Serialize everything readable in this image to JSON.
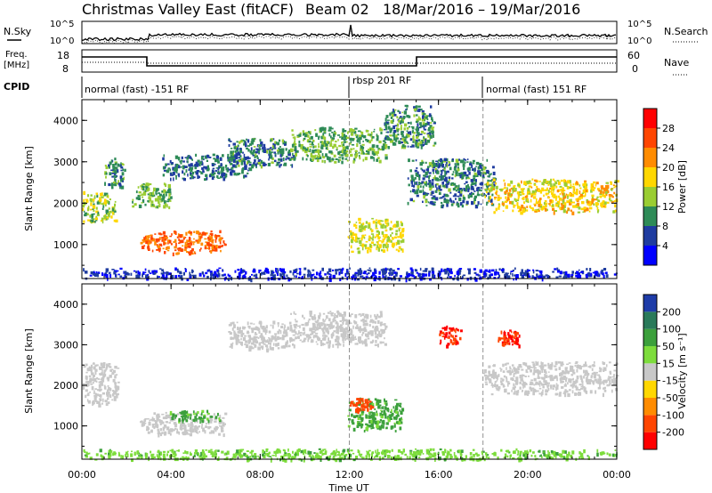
{
  "header": {
    "title": "Christmas Valley East (fitACF)",
    "beam": "Beam 02",
    "date_range": "18/Mar/2016 – 19/Mar/2016"
  },
  "side_labels": {
    "nsky": "N.Sky",
    "nsearch": "N.Search",
    "freq_line1": "Freq.",
    "freq_line2": "[MHz]",
    "nave": "Nave",
    "cpid": "CPID"
  },
  "strip_ticks": {
    "noise_left": [
      "10^5",
      "10^0"
    ],
    "noise_right": [
      "10^5",
      "10^0"
    ],
    "freq_left": [
      "18",
      "8"
    ],
    "freq_right": [
      "60",
      "0"
    ]
  },
  "cpid_segments": [
    {
      "label": "normal (fast) -151 RF",
      "start_h": 0,
      "end_h": 12
    },
    {
      "label": "rbsp 201 RF",
      "start_h": 12,
      "end_h": 18
    },
    {
      "label": "normal (fast) 151 RF",
      "start_h": 18,
      "end_h": 24
    }
  ],
  "axes": {
    "xlabel": "Time UT",
    "ylabel_top": "Slant Range [km]",
    "ylabel_bottom": "Slant Range [km]",
    "xticks": [
      "00:00",
      "04:00",
      "08:00",
      "12:00",
      "16:00",
      "20:00",
      "00:00"
    ],
    "yticks": [
      "1000",
      "2000",
      "3000",
      "4000"
    ]
  },
  "colorbars": {
    "power": {
      "label": "Power [dB]",
      "ticks": [
        "4",
        "8",
        "12",
        "16",
        "20",
        "24",
        "28"
      ],
      "colors": [
        "#0000ff",
        "#1f3ca0",
        "#2e8b57",
        "#9acd32",
        "#ffd700",
        "#ff8c00",
        "#ff4500",
        "#ff0000"
      ]
    },
    "velocity": {
      "label": "Velocity [m s⁻¹]",
      "ticks": [
        "200",
        "100",
        "50",
        "15",
        "-15",
        "-50",
        "-100",
        "-200"
      ],
      "colors": [
        "#1e3ca8",
        "#2a7a5a",
        "#3ca03c",
        "#7ddc3c",
        "#c8c8c8",
        "#ffd700",
        "#ff8c00",
        "#ff4500",
        "#ff0000"
      ]
    }
  },
  "chart_data": {
    "type": "heatmap",
    "x_unit": "hours UT",
    "y_unit": "km",
    "xlim": [
      0,
      24
    ],
    "ylim": [
      180,
      4500
    ],
    "power_echoes": [
      {
        "t": [
          0.0,
          1.5
        ],
        "r": [
          1550,
          2300
        ],
        "power_db": 14
      },
      {
        "t": [
          1.0,
          1.9
        ],
        "r": [
          2350,
          3100
        ],
        "power_db": 10
      },
      {
        "t": [
          2.2,
          4.0
        ],
        "r": [
          1900,
          2500
        ],
        "power_db": 12
      },
      {
        "t": [
          2.6,
          6.4
        ],
        "r": [
          800,
          1350
        ],
        "power_db": 24
      },
      {
        "t": [
          3.6,
          7.5
        ],
        "r": [
          2600,
          3200
        ],
        "power_db": 8
      },
      {
        "t": [
          6.5,
          9.6
        ],
        "r": [
          2900,
          3600
        ],
        "power_db": 9
      },
      {
        "t": [
          9.3,
          13.6
        ],
        "r": [
          3000,
          3850
        ],
        "power_db": 12
      },
      {
        "t": [
          11.9,
          14.4
        ],
        "r": [
          850,
          1650
        ],
        "power_db": 16
      },
      {
        "t": [
          13.5,
          15.8
        ],
        "r": [
          3350,
          4400
        ],
        "power_db": 10
      },
      {
        "t": [
          14.6,
          18.5
        ],
        "r": [
          1950,
          3100
        ],
        "power_db": 9
      },
      {
        "t": [
          18.0,
          24.0
        ],
        "r": [
          1800,
          2600
        ],
        "power_db": 18
      },
      {
        "t": [
          0.0,
          24.0
        ],
        "r": [
          180,
          450
        ],
        "power_db": 4
      }
    ],
    "velocity_echoes": [
      {
        "t": [
          0.0,
          1.6
        ],
        "r": [
          1500,
          2600
        ],
        "velocity": 0
      },
      {
        "t": [
          2.6,
          6.4
        ],
        "r": [
          800,
          1350
        ],
        "velocity": 0
      },
      {
        "t": [
          3.9,
          6.2
        ],
        "r": [
          1100,
          1400
        ],
        "velocity": 60
      },
      {
        "t": [
          6.5,
          9.6
        ],
        "r": [
          2900,
          3600
        ],
        "velocity": 0
      },
      {
        "t": [
          9.3,
          13.6
        ],
        "r": [
          3000,
          3850
        ],
        "velocity": 0
      },
      {
        "t": [
          11.9,
          14.4
        ],
        "r": [
          900,
          1700
        ],
        "velocity": 60
      },
      {
        "t": [
          12.0,
          13.0
        ],
        "r": [
          1350,
          1700
        ],
        "velocity": -150
      },
      {
        "t": [
          16.0,
          17.0
        ],
        "r": [
          3000,
          3500
        ],
        "velocity": -200
      },
      {
        "t": [
          18.6,
          19.6
        ],
        "r": [
          3000,
          3400
        ],
        "velocity": -200
      },
      {
        "t": [
          18.0,
          24.0
        ],
        "r": [
          1800,
          2600
        ],
        "velocity": 0
      },
      {
        "t": [
          0.0,
          24.0
        ],
        "r": [
          180,
          450
        ],
        "velocity": 40
      }
    ]
  }
}
